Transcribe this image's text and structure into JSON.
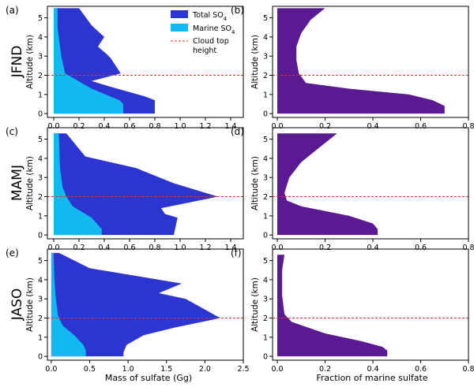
{
  "rows": [
    "JFND",
    "MAMJ",
    "JASO"
  ],
  "y_axis_label": "Altitude (km)",
  "x_titles": {
    "left": "Mass of sulfate (Gg)",
    "right": "Fraction of marine sulfate"
  },
  "legend": {
    "items": [
      "Total SO4",
      "Marine SO4",
      "Cloud top height"
    ]
  },
  "colors": {
    "total": "#2c35d0",
    "marine": "#12b8f0",
    "fraction": "#5a1a92",
    "cloud_top": "#e03030",
    "frame": "#000000"
  },
  "chart_data": [
    {
      "id": "a",
      "label": "(a)",
      "row": "JFND",
      "type": "area",
      "xlabel": "",
      "ylabel": "Altitude (km)",
      "xlim": [
        -0.05,
        1.5
      ],
      "ylim": [
        -0.2,
        5.6
      ],
      "xticks": [
        "0.0",
        "0.2",
        "0.4",
        "0.6",
        "0.8",
        "1.0",
        "1.2",
        "1.4"
      ],
      "yticks": [
        "0",
        "1",
        "2",
        "3",
        "4",
        "5"
      ],
      "cloud_top_height": 2.0,
      "series": [
        {
          "name": "Total SO4",
          "x": [
            0,
            0.2,
            0.3,
            0.4,
            0.35,
            0.42,
            0.45,
            0.53,
            0.3,
            0.45,
            0.72,
            0.8,
            0.8,
            0
          ],
          "y": [
            5.5,
            5.5,
            4.6,
            4.0,
            3.5,
            3.1,
            2.9,
            2.1,
            1.7,
            1.4,
            0.9,
            0.7,
            0,
            0
          ]
        },
        {
          "name": "Marine SO4",
          "x": [
            0,
            0.03,
            0.03,
            0.05,
            0.06,
            0.09,
            0.3,
            0.52,
            0.55,
            0.55,
            0
          ],
          "y": [
            5.5,
            5.5,
            4.5,
            3.5,
            3.0,
            2.1,
            1.3,
            0.7,
            0.5,
            0,
            0
          ]
        }
      ]
    },
    {
      "id": "b",
      "label": "(b)",
      "row": "JFND",
      "type": "area",
      "xlabel": "",
      "ylabel": "Altitude (km)",
      "xlim": [
        -0.02,
        0.8
      ],
      "ylim": [
        -0.2,
        5.6
      ],
      "xticks": [
        "0.0",
        "0.2",
        "0.4",
        "0.6",
        "0.8"
      ],
      "yticks": [
        "0",
        "1",
        "2",
        "3",
        "4",
        "5"
      ],
      "cloud_top_height": 2.0,
      "series": [
        {
          "name": "Fraction of marine sulfate",
          "x": [
            0,
            0.2,
            0.14,
            0.1,
            0.08,
            0.08,
            0.09,
            0.12,
            0.3,
            0.55,
            0.65,
            0.7,
            0.7,
            0
          ],
          "y": [
            5.5,
            5.5,
            4.9,
            4.2,
            3.5,
            2.8,
            2.1,
            1.6,
            1.3,
            1.0,
            0.7,
            0.4,
            0,
            0
          ]
        }
      ]
    },
    {
      "id": "c",
      "label": "(c)",
      "row": "MAMJ",
      "type": "area",
      "xlabel": "",
      "ylabel": "Altitude (km)",
      "xlim": [
        -0.05,
        1.5
      ],
      "ylim": [
        -0.2,
        5.6
      ],
      "xticks": [
        "0.0",
        "0.2",
        "0.4",
        "0.6",
        "0.8",
        "1.0",
        "1.2",
        "1.4"
      ],
      "yticks": [
        "0",
        "1",
        "2",
        "3",
        "4",
        "5"
      ],
      "cloud_top_height": 2.0,
      "series": [
        {
          "name": "Total SO4",
          "x": [
            0,
            0.1,
            0.25,
            0.65,
            0.95,
            1.3,
            0.85,
            0.88,
            0.98,
            0.95,
            0
          ],
          "y": [
            5.3,
            5.3,
            4.1,
            3.5,
            2.7,
            2.0,
            1.4,
            1.1,
            0.9,
            0,
            0
          ]
        },
        {
          "name": "Marine SO4",
          "x": [
            0,
            0.04,
            0.05,
            0.07,
            0.1,
            0.15,
            0.3,
            0.38,
            0.38,
            0
          ],
          "y": [
            5.3,
            5.3,
            3.5,
            2.5,
            2.0,
            1.5,
            0.9,
            0.3,
            0,
            0
          ]
        }
      ]
    },
    {
      "id": "d",
      "label": "(d)",
      "row": "MAMJ",
      "type": "area",
      "xlabel": "",
      "ylabel": "Altitude (km)",
      "xlim": [
        -0.02,
        0.8
      ],
      "ylim": [
        -0.2,
        5.6
      ],
      "xticks": [
        "0.0",
        "0.2",
        "0.4",
        "0.6",
        "0.8"
      ],
      "yticks": [
        "0",
        "1",
        "2",
        "3",
        "4",
        "5"
      ],
      "cloud_top_height": 2.0,
      "series": [
        {
          "name": "Fraction of marine sulfate",
          "x": [
            0,
            0.25,
            0.18,
            0.1,
            0.05,
            0.03,
            0.04,
            0.1,
            0.3,
            0.4,
            0.42,
            0.42,
            0
          ],
          "y": [
            5.3,
            5.3,
            4.6,
            3.8,
            3.0,
            2.2,
            1.8,
            1.5,
            1.0,
            0.6,
            0.3,
            0,
            0
          ]
        }
      ]
    },
    {
      "id": "e",
      "label": "(e)",
      "row": "JASO",
      "type": "area",
      "xlabel": "Mass of sulfate (Gg)",
      "ylabel": "Altitude (km)",
      "xlim": [
        -0.05,
        2.5
      ],
      "ylim": [
        -0.2,
        5.6
      ],
      "xticks": [
        "0.0",
        "0.5",
        "1.0",
        "1.5",
        "2.0",
        "2.5"
      ],
      "yticks": [
        "0",
        "1",
        "2",
        "3",
        "4",
        "5"
      ],
      "cloud_top_height": 2.0,
      "series": [
        {
          "name": "Total SO4",
          "x": [
            0,
            0.1,
            0.5,
            1.7,
            1.4,
            1.75,
            2.2,
            1.6,
            1.2,
            0.98,
            0.94,
            0.94,
            0
          ],
          "y": [
            5.4,
            5.4,
            4.6,
            3.8,
            3.3,
            3.0,
            2.0,
            1.5,
            1.1,
            0.6,
            0.2,
            0,
            0
          ]
        },
        {
          "name": "Marine SO4",
          "x": [
            0,
            0.03,
            0.04,
            0.06,
            0.09,
            0.15,
            0.3,
            0.42,
            0.45,
            0.45,
            0
          ],
          "y": [
            5.4,
            5.4,
            4.0,
            3.0,
            2.1,
            1.6,
            1.1,
            0.6,
            0.3,
            0,
            0
          ]
        }
      ]
    },
    {
      "id": "f",
      "label": "(f)",
      "row": "JASO",
      "type": "area",
      "xlabel": "Fraction of marine sulfate",
      "ylabel": "Altitude (km)",
      "xlim": [
        -0.02,
        0.8
      ],
      "ylim": [
        -0.2,
        5.6
      ],
      "xticks": [
        "0.0",
        "0.2",
        "0.4",
        "0.6",
        "0.8"
      ],
      "yticks": [
        "0",
        "1",
        "2",
        "3",
        "4",
        "5"
      ],
      "cloud_top_height": 2.0,
      "series": [
        {
          "name": "Fraction of marine sulfate",
          "x": [
            0,
            0.03,
            0.02,
            0.02,
            0.03,
            0.06,
            0.2,
            0.35,
            0.44,
            0.46,
            0.46,
            0
          ],
          "y": [
            5.3,
            5.3,
            4.5,
            3.2,
            2.2,
            1.8,
            1.2,
            0.8,
            0.5,
            0.3,
            0,
            0
          ]
        }
      ]
    }
  ]
}
